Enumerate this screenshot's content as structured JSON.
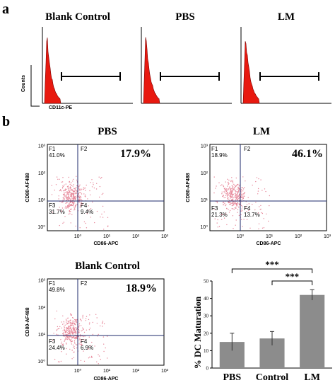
{
  "panels": {
    "a": "a",
    "b": "b"
  },
  "histograms": [
    {
      "title": "Blank Control",
      "ylabel": "Counts",
      "xlabel": "CD11c-PE"
    },
    {
      "title": "PBS"
    },
    {
      "title": "LM"
    }
  ],
  "dotplots": [
    {
      "title": "PBS",
      "ylabel": "CD80-AF488",
      "xlabel": "CD86-APC",
      "gate_label": "17.9%",
      "quadrants": [
        {
          "name": "F1",
          "value": "41.0%"
        },
        {
          "name": "F2",
          "value": ""
        },
        {
          "name": "F3",
          "value": "31.7%"
        },
        {
          "name": "F4",
          "value": "9.4%"
        }
      ]
    },
    {
      "title": "LM",
      "ylabel": "CD80-AF488",
      "xlabel": "CD86-APC",
      "gate_label": "46.1%",
      "quadrants": [
        {
          "name": "F1",
          "value": "18.9%"
        },
        {
          "name": "F2",
          "value": ""
        },
        {
          "name": "F3",
          "value": "21.3%"
        },
        {
          "name": "F4",
          "value": "13.7%"
        }
      ]
    },
    {
      "title": "Blank Control",
      "ylabel": "CD80-AF488",
      "xlabel": "CD86-APC",
      "gate_label": "18.9%",
      "quadrants": [
        {
          "name": "F1",
          "value": "49.8%"
        },
        {
          "name": "F2",
          "value": ""
        },
        {
          "name": "F3",
          "value": "24.4%"
        },
        {
          "name": "F4",
          "value": "6.9%"
        }
      ]
    }
  ],
  "log_ticks": [
    "10⁰",
    "10¹",
    "10²",
    "10³"
  ],
  "colors": {
    "histogram": "#e8190f",
    "dots": "#e7889a",
    "bars": "#8c8c8c"
  },
  "chart_data": {
    "type": "bar",
    "categories": [
      "PBS",
      "Control",
      "LM"
    ],
    "values": [
      15,
      17,
      42
    ],
    "errors": [
      5,
      4,
      3
    ],
    "ylabel": "% DC Maturation",
    "ylim": [
      0,
      50
    ],
    "yticks": [
      0,
      10,
      20,
      30,
      40,
      50
    ],
    "significance": [
      {
        "from": "PBS",
        "to": "LM",
        "label": "***"
      },
      {
        "from": "Control",
        "to": "LM",
        "label": "***"
      }
    ]
  }
}
